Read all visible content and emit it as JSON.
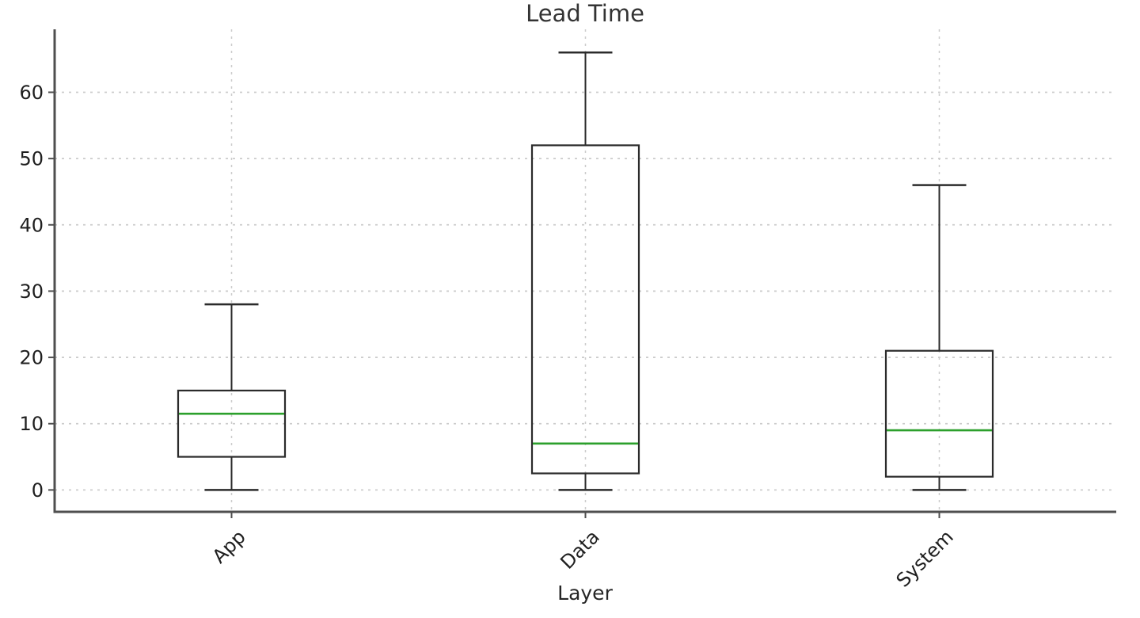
{
  "chart_data": {
    "type": "box",
    "title": "Lead Time",
    "xlabel": "Layer",
    "ylabel": "",
    "categories": [
      "App",
      "Data",
      "System"
    ],
    "series": [
      {
        "label": "App",
        "whislo": 0,
        "q1": 5,
        "med": 11.5,
        "q3": 15,
        "whishi": 28
      },
      {
        "label": "Data",
        "whislo": 0,
        "q1": 2.5,
        "med": 7,
        "q3": 52,
        "whishi": 66
      },
      {
        "label": "System",
        "whislo": 0,
        "q1": 2,
        "med": 9,
        "q3": 21,
        "whishi": 46
      }
    ],
    "yticks": [
      0,
      10,
      20,
      30,
      40,
      50,
      60
    ],
    "ylim": [
      -3.3,
      69.5
    ],
    "grid": true,
    "legend": false,
    "outliers": [],
    "colors": {
      "median": "#2ca02c",
      "box_edge": "#2b2b2b",
      "whisker": "#2b2b2b",
      "grid": "#cccccc",
      "spine": "#4f4f4f",
      "text": "#1f1f1f",
      "background": "#ffffff"
    }
  }
}
